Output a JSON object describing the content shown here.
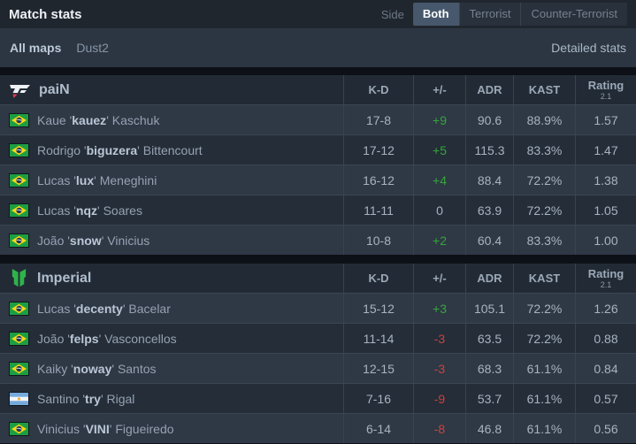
{
  "colors": {
    "positive": "#35a53c",
    "negative": "#c9433c",
    "accent_active": "#47586c",
    "pain_red": "#e23a53",
    "pain_white": "#eef1f5",
    "imperial_green": "#2fb24c"
  },
  "header": {
    "title": "Match stats",
    "side_label": "Side",
    "side_options": [
      {
        "label": "Both",
        "active": true
      },
      {
        "label": "Terrorist",
        "active": false
      },
      {
        "label": "Counter-Terrorist",
        "active": false
      }
    ]
  },
  "nav": {
    "maps": [
      {
        "label": "All maps",
        "active": true
      },
      {
        "label": "Dust2",
        "active": false
      }
    ],
    "detailed_stats_label": "Detailed stats"
  },
  "columns": {
    "kd": "K-D",
    "plus_minus": "+/-",
    "adr": "ADR",
    "kast": "KAST",
    "rating": "Rating",
    "rating_sub": "2.1"
  },
  "teams": [
    {
      "name": "paiN",
      "logo": "pain",
      "players": [
        {
          "flag": "brazil",
          "first": "Kaue",
          "nick": "kauez",
          "last": "Kaschuk",
          "kd": "17-8",
          "diff": "+9",
          "trend": "pos",
          "adr": "90.6",
          "kast": "88.9%",
          "rating": "1.57"
        },
        {
          "flag": "brazil",
          "first": "Rodrigo",
          "nick": "biguzera",
          "last": "Bittencourt",
          "kd": "17-12",
          "diff": "+5",
          "trend": "pos",
          "adr": "115.3",
          "kast": "83.3%",
          "rating": "1.47"
        },
        {
          "flag": "brazil",
          "first": "Lucas",
          "nick": "lux",
          "last": "Meneghini",
          "kd": "16-12",
          "diff": "+4",
          "trend": "pos",
          "adr": "88.4",
          "kast": "72.2%",
          "rating": "1.38"
        },
        {
          "flag": "brazil",
          "first": "Lucas",
          "nick": "nqz",
          "last": "Soares",
          "kd": "11-11",
          "diff": "0",
          "trend": "neutral",
          "adr": "63.9",
          "kast": "72.2%",
          "rating": "1.05"
        },
        {
          "flag": "brazil",
          "first": "João",
          "nick": "snow",
          "last": "Vinicius",
          "kd": "10-8",
          "diff": "+2",
          "trend": "pos",
          "adr": "60.4",
          "kast": "83.3%",
          "rating": "1.00"
        }
      ]
    },
    {
      "name": "Imperial",
      "logo": "imperial",
      "players": [
        {
          "flag": "brazil",
          "first": "Lucas",
          "nick": "decenty",
          "last": "Bacelar",
          "kd": "15-12",
          "diff": "+3",
          "trend": "pos",
          "adr": "105.1",
          "kast": "72.2%",
          "rating": "1.26"
        },
        {
          "flag": "brazil",
          "first": "João",
          "nick": "felps",
          "last": "Vasconcellos",
          "kd": "11-14",
          "diff": "-3",
          "trend": "neg",
          "adr": "63.5",
          "kast": "72.2%",
          "rating": "0.88"
        },
        {
          "flag": "brazil",
          "first": "Kaiky",
          "nick": "noway",
          "last": "Santos",
          "kd": "12-15",
          "diff": "-3",
          "trend": "neg",
          "adr": "68.3",
          "kast": "61.1%",
          "rating": "0.84"
        },
        {
          "flag": "argentina",
          "first": "Santino",
          "nick": "try",
          "last": "Rigal",
          "kd": "7-16",
          "diff": "-9",
          "trend": "neg",
          "adr": "53.7",
          "kast": "61.1%",
          "rating": "0.57"
        },
        {
          "flag": "brazil",
          "first": "Vinicius",
          "nick": "VINI",
          "last": "Figueiredo",
          "kd": "6-14",
          "diff": "-8",
          "trend": "neg",
          "adr": "46.8",
          "kast": "61.1%",
          "rating": "0.56"
        }
      ]
    }
  ]
}
